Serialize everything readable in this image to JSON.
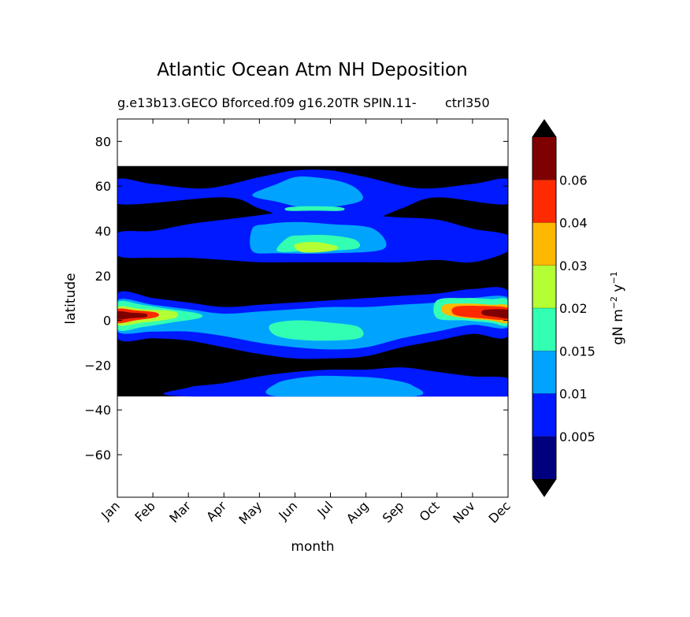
{
  "chart_data": {
    "type": "heatmap",
    "subtype": "filled-contour",
    "title": "Atlantic Ocean Atm NH Deposition",
    "subtitle_left": "g.e13b13.GECO Bforced.f09 g16.20TR SPIN.11-",
    "subtitle_right": "ctrl350",
    "xlabel": "month",
    "ylabel": "latitude",
    "x_ticks": [
      "Jan",
      "Feb",
      "Mar",
      "Apr",
      "May",
      "Jun",
      "Jul",
      "Aug",
      "Sep",
      "Oct",
      "Nov",
      "Dec"
    ],
    "x_range": [
      0,
      11
    ],
    "y_ticks": [
      80,
      60,
      40,
      20,
      0,
      -20,
      -40,
      -60
    ],
    "y_tick_labels": [
      "80",
      "60",
      "40",
      "20",
      "0",
      "−20",
      "−40",
      "−60"
    ],
    "ylim": [
      -79,
      90
    ],
    "data_lat_range": [
      -34,
      69
    ],
    "colorbar": {
      "label": "gN m⁻² y⁻¹",
      "label_parts": {
        "base": "gN m",
        "exp1": "−2",
        "mid": " y",
        "exp2": "−1"
      },
      "levels": [
        0.001,
        0.005,
        0.01,
        0.015,
        0.02,
        0.03,
        0.04,
        0.06,
        0.07
      ],
      "tick_values": [
        0.005,
        0.01,
        0.015,
        0.02,
        0.03,
        0.04,
        0.06
      ],
      "tick_labels": [
        "0.005",
        "0.01",
        "0.015",
        "0.02",
        "0.03",
        "0.04",
        "0.06"
      ],
      "colors": [
        "#00007f",
        "#0019ff",
        "#00a4ff",
        "#33ffb3",
        "#b3ff33",
        "#ffb800",
        "#ff2a00",
        "#7f0000"
      ],
      "under_color": "#000000",
      "over_color": "#000000",
      "extend": "both"
    },
    "features": [
      {
        "name": "northern-high-latitude",
        "level": 1,
        "points": [
          [
            0,
            63
          ],
          [
            1,
            61
          ],
          [
            2.5,
            59
          ],
          [
            4,
            64
          ],
          [
            5,
            67
          ],
          [
            6,
            67
          ],
          [
            7,
            64
          ],
          [
            8.5,
            59
          ],
          [
            10,
            61
          ],
          [
            11,
            63
          ]
        ],
        "lower": [
          [
            11,
            52
          ],
          [
            9,
            55
          ],
          [
            8,
            50
          ],
          [
            7,
            44
          ],
          [
            6,
            43
          ],
          [
            5,
            45
          ],
          [
            4,
            50
          ],
          [
            3,
            55
          ],
          [
            0,
            52
          ]
        ]
      },
      {
        "name": "northern-subtropics",
        "level": 1,
        "points": [
          [
            0,
            39
          ],
          [
            1,
            40
          ],
          [
            2,
            43
          ],
          [
            3,
            45
          ],
          [
            4,
            47
          ],
          [
            5,
            49
          ],
          [
            6,
            48
          ],
          [
            7,
            47
          ],
          [
            8,
            46
          ],
          [
            9,
            45
          ],
          [
            10,
            41
          ],
          [
            11,
            38
          ]
        ],
        "lower": [
          [
            11,
            31
          ],
          [
            10,
            26
          ],
          [
            9,
            27
          ],
          [
            8,
            26
          ],
          [
            7,
            26
          ],
          [
            6,
            26
          ],
          [
            5,
            26
          ],
          [
            4,
            26
          ],
          [
            3,
            27
          ],
          [
            2,
            28
          ],
          [
            1,
            28
          ],
          [
            0,
            29
          ]
        ]
      },
      {
        "name": "northern-max-upper",
        "level": 2,
        "points": [
          [
            3.8,
            56
          ],
          [
            4.5,
            61
          ],
          [
            5,
            64
          ],
          [
            5.5,
            64
          ],
          [
            6.3,
            62
          ],
          [
            6.8,
            58
          ]
        ],
        "lower": [
          [
            6.8,
            53
          ],
          [
            5.5,
            50
          ],
          [
            4.5,
            53
          ]
        ]
      },
      {
        "name": "northern-max-middle",
        "level": 2,
        "points": [
          [
            3.8,
            41
          ],
          [
            4.2,
            43
          ],
          [
            5,
            44
          ],
          [
            6,
            43
          ],
          [
            7.2,
            41
          ]
        ],
        "lower": [
          [
            7.5,
            32
          ],
          [
            6,
            30
          ],
          [
            4.5,
            30
          ],
          [
            3.8,
            31
          ]
        ]
      },
      {
        "name": "northern-max-band",
        "level": 3,
        "points": [
          [
            4.8,
            50.5
          ],
          [
            5.5,
            51
          ],
          [
            6.3,
            50.5
          ]
        ],
        "lower": [
          [
            6.3,
            49
          ],
          [
            5.5,
            49
          ],
          [
            4.8,
            49
          ]
        ]
      },
      {
        "name": "northern-max-core",
        "level": 3,
        "points": [
          [
            4.8,
            37
          ],
          [
            5.2,
            38
          ],
          [
            6,
            38
          ],
          [
            6.7,
            36
          ]
        ],
        "lower": [
          [
            6.7,
            32
          ],
          [
            5.3,
            31
          ],
          [
            4.5,
            31
          ]
        ]
      },
      {
        "name": "northern-max-peak",
        "level": 4,
        "points": [
          [
            5,
            34
          ],
          [
            5.6,
            35
          ],
          [
            6.2,
            33
          ]
        ],
        "lower": [
          [
            6,
            31
          ],
          [
            5.2,
            30.5
          ]
        ]
      },
      {
        "name": "equatorial-band",
        "level": 1,
        "points": [
          [
            0,
            12
          ],
          [
            1,
            10
          ],
          [
            2,
            8
          ],
          [
            3,
            6
          ],
          [
            4,
            7
          ],
          [
            5,
            8
          ],
          [
            6,
            9
          ],
          [
            7,
            10
          ],
          [
            8,
            11
          ],
          [
            9,
            12
          ],
          [
            10,
            14
          ],
          [
            11,
            13
          ]
        ],
        "lower": [
          [
            11,
            -7
          ],
          [
            10,
            -6
          ],
          [
            9,
            -9
          ],
          [
            8,
            -12
          ],
          [
            7,
            -16
          ],
          [
            6,
            -17
          ],
          [
            5,
            -17
          ],
          [
            4,
            -15
          ],
          [
            3,
            -12
          ],
          [
            2,
            -9
          ],
          [
            1,
            -8
          ],
          [
            0,
            -8
          ]
        ]
      },
      {
        "name": "equatorial-inner",
        "level": 2,
        "points": [
          [
            0,
            9
          ],
          [
            1,
            7
          ],
          [
            2,
            5
          ],
          [
            3,
            3
          ],
          [
            4,
            4
          ],
          [
            5,
            5
          ],
          [
            6,
            6
          ],
          [
            7,
            6
          ],
          [
            8,
            7
          ],
          [
            9,
            8
          ],
          [
            10,
            10
          ],
          [
            11,
            10
          ]
        ],
        "lower": [
          [
            11,
            -3
          ],
          [
            10,
            -2
          ],
          [
            9,
            -5
          ],
          [
            8,
            -8
          ],
          [
            7,
            -12
          ],
          [
            6,
            -13
          ],
          [
            5,
            -12
          ],
          [
            4,
            -10
          ],
          [
            3,
            -7
          ],
          [
            2,
            -5
          ],
          [
            1,
            -5
          ],
          [
            0,
            -5
          ]
        ]
      },
      {
        "name": "equatorial-core-jun",
        "level": 3,
        "points": [
          [
            4.3,
            -2
          ],
          [
            5,
            0
          ],
          [
            6,
            -1
          ],
          [
            6.8,
            -3
          ]
        ],
        "lower": [
          [
            6.8,
            -8
          ],
          [
            5.5,
            -9
          ],
          [
            4.5,
            -7
          ]
        ]
      },
      {
        "name": "january-max",
        "level": 3,
        "points": [
          [
            0,
            8
          ],
          [
            0.7,
            7
          ],
          [
            1.5,
            5
          ],
          [
            2.3,
            3
          ]
        ],
        "lower": [
          [
            2.3,
            1
          ],
          [
            1.5,
            -1
          ],
          [
            0.7,
            -3
          ],
          [
            0,
            -4
          ]
        ]
      },
      {
        "name": "january-inner",
        "level": 4,
        "points": [
          [
            0,
            6
          ],
          [
            0.7,
            5
          ],
          [
            1.6,
            4
          ]
        ],
        "lower": [
          [
            1.6,
            1
          ],
          [
            0.7,
            -1
          ],
          [
            0,
            -2
          ]
        ]
      },
      {
        "name": "january-peak",
        "level": 6,
        "points": [
          [
            0,
            5
          ],
          [
            0.5,
            4.5
          ],
          [
            1.1,
            3.5
          ]
        ],
        "lower": [
          [
            1.1,
            1.5
          ],
          [
            0.5,
            0
          ],
          [
            0,
            -1
          ]
        ]
      },
      {
        "name": "january-core",
        "level": 7,
        "points": [
          [
            0,
            4
          ],
          [
            0.4,
            3.5
          ],
          [
            0.8,
            3
          ]
        ],
        "lower": [
          [
            0.8,
            1.5
          ],
          [
            0.4,
            1
          ],
          [
            0,
            0.5
          ]
        ]
      },
      {
        "name": "december-max",
        "level": 3,
        "points": [
          [
            9,
            9
          ],
          [
            9.8,
            10
          ],
          [
            10.5,
            9.5
          ],
          [
            11,
            9
          ]
        ],
        "lower": [
          [
            11,
            -2
          ],
          [
            10.5,
            -1
          ],
          [
            9.8,
            0
          ],
          [
            9,
            1
          ]
        ]
      },
      {
        "name": "december-inner",
        "level": 5,
        "points": [
          [
            9.2,
            7
          ],
          [
            9.9,
            7.5
          ],
          [
            10.5,
            7
          ],
          [
            11,
            6.5
          ]
        ],
        "lower": [
          [
            11,
            -1
          ],
          [
            10.5,
            0
          ],
          [
            9.8,
            1
          ],
          [
            9.2,
            3
          ]
        ]
      },
      {
        "name": "december-peak",
        "level": 6,
        "points": [
          [
            9.5,
            6
          ],
          [
            10.2,
            6.5
          ],
          [
            11,
            5.5
          ]
        ],
        "lower": [
          [
            11,
            0.5
          ],
          [
            10.2,
            1
          ],
          [
            9.5,
            2.5
          ]
        ]
      },
      {
        "name": "december-core",
        "level": 7,
        "points": [
          [
            10.3,
            4.5
          ],
          [
            10.7,
            5
          ],
          [
            11,
            4.5
          ]
        ],
        "lower": [
          [
            11,
            1
          ],
          [
            10.7,
            1.5
          ],
          [
            10.3,
            2.5
          ]
        ]
      },
      {
        "name": "southern-band",
        "level": 1,
        "points": [
          [
            2,
            -30
          ],
          [
            3,
            -28
          ],
          [
            4,
            -25
          ],
          [
            5,
            -23
          ],
          [
            6,
            -22
          ],
          [
            7,
            -22
          ],
          [
            8,
            -21
          ],
          [
            9,
            -23
          ],
          [
            10,
            -25
          ],
          [
            11,
            -26
          ]
        ],
        "lower": [
          [
            11,
            -34
          ],
          [
            2,
            -34
          ]
        ]
      },
      {
        "name": "southern-inner",
        "level": 2,
        "points": [
          [
            4.5,
            -28
          ],
          [
            5.5,
            -25
          ],
          [
            6.5,
            -25
          ],
          [
            7.5,
            -26
          ],
          [
            8.3,
            -29
          ]
        ],
        "lower": [
          [
            8.3,
            -34
          ],
          [
            4.5,
            -34
          ]
        ]
      }
    ]
  }
}
